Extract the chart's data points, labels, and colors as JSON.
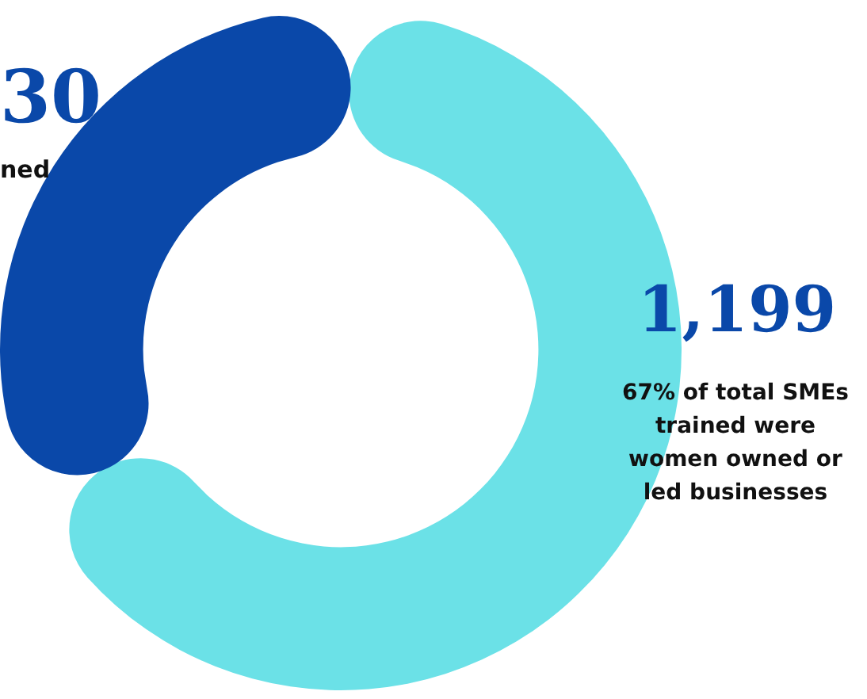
{
  "chart_data": {
    "type": "donut",
    "categories": [
      null,
      null
    ],
    "values": [
      67,
      33
    ],
    "colors": [
      "#6be1e7",
      "#0a48a9"
    ],
    "annotations": [
      "30",
      "ned",
      "1,199",
      "67% of total SMEs trained were women owned or led businesses"
    ]
  }
}
